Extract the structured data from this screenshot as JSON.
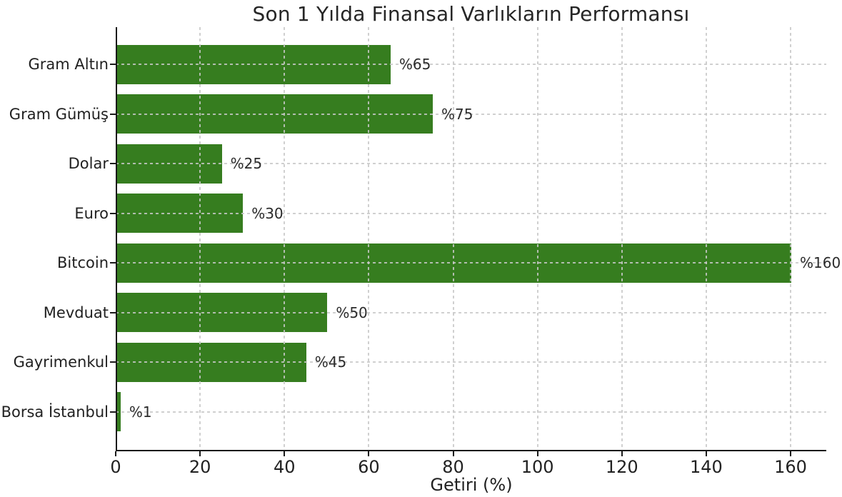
{
  "chart_data": {
    "type": "bar",
    "orientation": "horizontal",
    "title": "Son 1 Yılda Finansal Varlıkların Performansı",
    "xlabel": "Getiri (%)",
    "ylabel": "",
    "categories": [
      "Gram Altın",
      "Gram Gümüş",
      "Dolar",
      "Euro",
      "Bitcoin",
      "Mevduat",
      "Gayrimenkul",
      "Borsa İstanbul"
    ],
    "values": [
      65,
      75,
      25,
      30,
      160,
      50,
      45,
      1
    ],
    "value_labels": [
      "%65",
      "%75",
      "%25",
      "%30",
      "%160",
      "%50",
      "%45",
      "%1"
    ],
    "xticks": [
      0,
      20,
      40,
      60,
      80,
      100,
      120,
      140,
      160
    ],
    "xtick_labels": [
      "0",
      "20",
      "40",
      "60",
      "80",
      "100",
      "120",
      "140",
      "160"
    ],
    "xlim": [
      0,
      168.5
    ],
    "grid": true,
    "grid_style": "dashed",
    "legend": false,
    "bar_color": "#367d1f",
    "grid_color": "#c8c8c8",
    "text_color": "#212121",
    "axis_color": "#1a1a1a",
    "background": "#ffffff"
  }
}
